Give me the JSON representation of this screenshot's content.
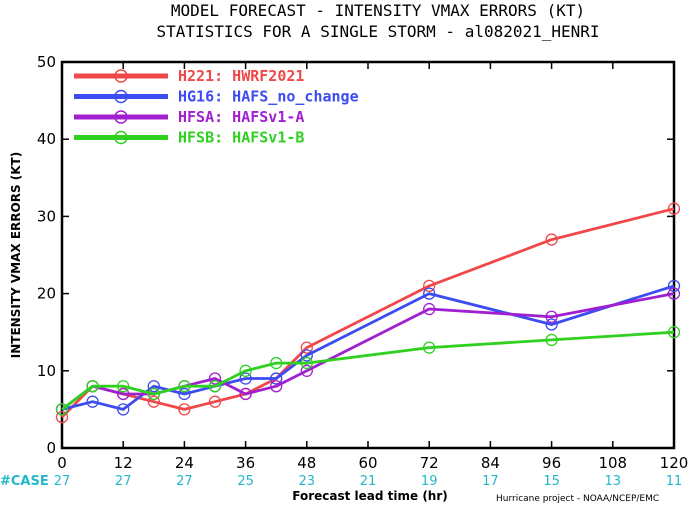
{
  "chart_data": {
    "type": "line",
    "title": [
      "MODEL FORECAST - INTENSITY VMAX ERRORS (KT)",
      "STATISTICS FOR A SINGLE STORM - al082021_HENRI"
    ],
    "xlabel": "Forecast lead time (hr)",
    "ylabel": "INTENSITY VMAX ERRORS (KT)",
    "xlim": [
      0,
      120
    ],
    "ylim": [
      0,
      50
    ],
    "xticks": [
      0,
      12,
      24,
      36,
      48,
      60,
      72,
      84,
      96,
      108,
      120
    ],
    "yticks": [
      0,
      10,
      20,
      30,
      40,
      50
    ],
    "legend_position": "top-left",
    "series": [
      {
        "name": "H221: HWRF2021",
        "color": "#f04848",
        "x": [
          0,
          6,
          12,
          18,
          24,
          30,
          36,
          42,
          48,
          72,
          96,
          120
        ],
        "values": [
          4,
          8,
          7,
          6,
          5,
          6,
          7,
          9,
          13,
          21,
          27,
          31
        ]
      },
      {
        "name": "HG16: HAFS_no_change",
        "color": "#3c4cf0",
        "x": [
          0,
          6,
          12,
          18,
          24,
          30,
          36,
          42,
          48,
          72,
          96,
          120
        ],
        "values": [
          5,
          6,
          5,
          8,
          7,
          8,
          9,
          9,
          12,
          20,
          16,
          21
        ]
      },
      {
        "name": "HFSA: HAFSv1-A",
        "color": "#a020d0",
        "x": [
          0,
          6,
          12,
          18,
          24,
          30,
          36,
          42,
          48,
          72,
          96,
          120
        ],
        "values": [
          5,
          8,
          7,
          7,
          8,
          9,
          7,
          8,
          10,
          18,
          17,
          20
        ]
      },
      {
        "name": "HFSB: HAFSv1-B",
        "color": "#30d020",
        "x": [
          0,
          6,
          12,
          18,
          24,
          30,
          36,
          42,
          48,
          72,
          96,
          120
        ],
        "values": [
          5,
          8,
          8,
          7,
          8,
          8,
          10,
          11,
          11,
          13,
          14,
          15
        ]
      }
    ],
    "case_label": "#CASE",
    "case_counts": [
      {
        "x": 0,
        "count": 27
      },
      {
        "x": 12,
        "count": 27
      },
      {
        "x": 24,
        "count": 27
      },
      {
        "x": 36,
        "count": 25
      },
      {
        "x": 48,
        "count": 23
      },
      {
        "x": 60,
        "count": 21
      },
      {
        "x": 72,
        "count": 19
      },
      {
        "x": 84,
        "count": 17
      },
      {
        "x": 96,
        "count": 15
      },
      {
        "x": 108,
        "count": 13
      },
      {
        "x": 120,
        "count": 11
      }
    ],
    "case_color": "#22b8c8",
    "credit": "Hurricane project - NOAA/NCEP/EMC"
  }
}
